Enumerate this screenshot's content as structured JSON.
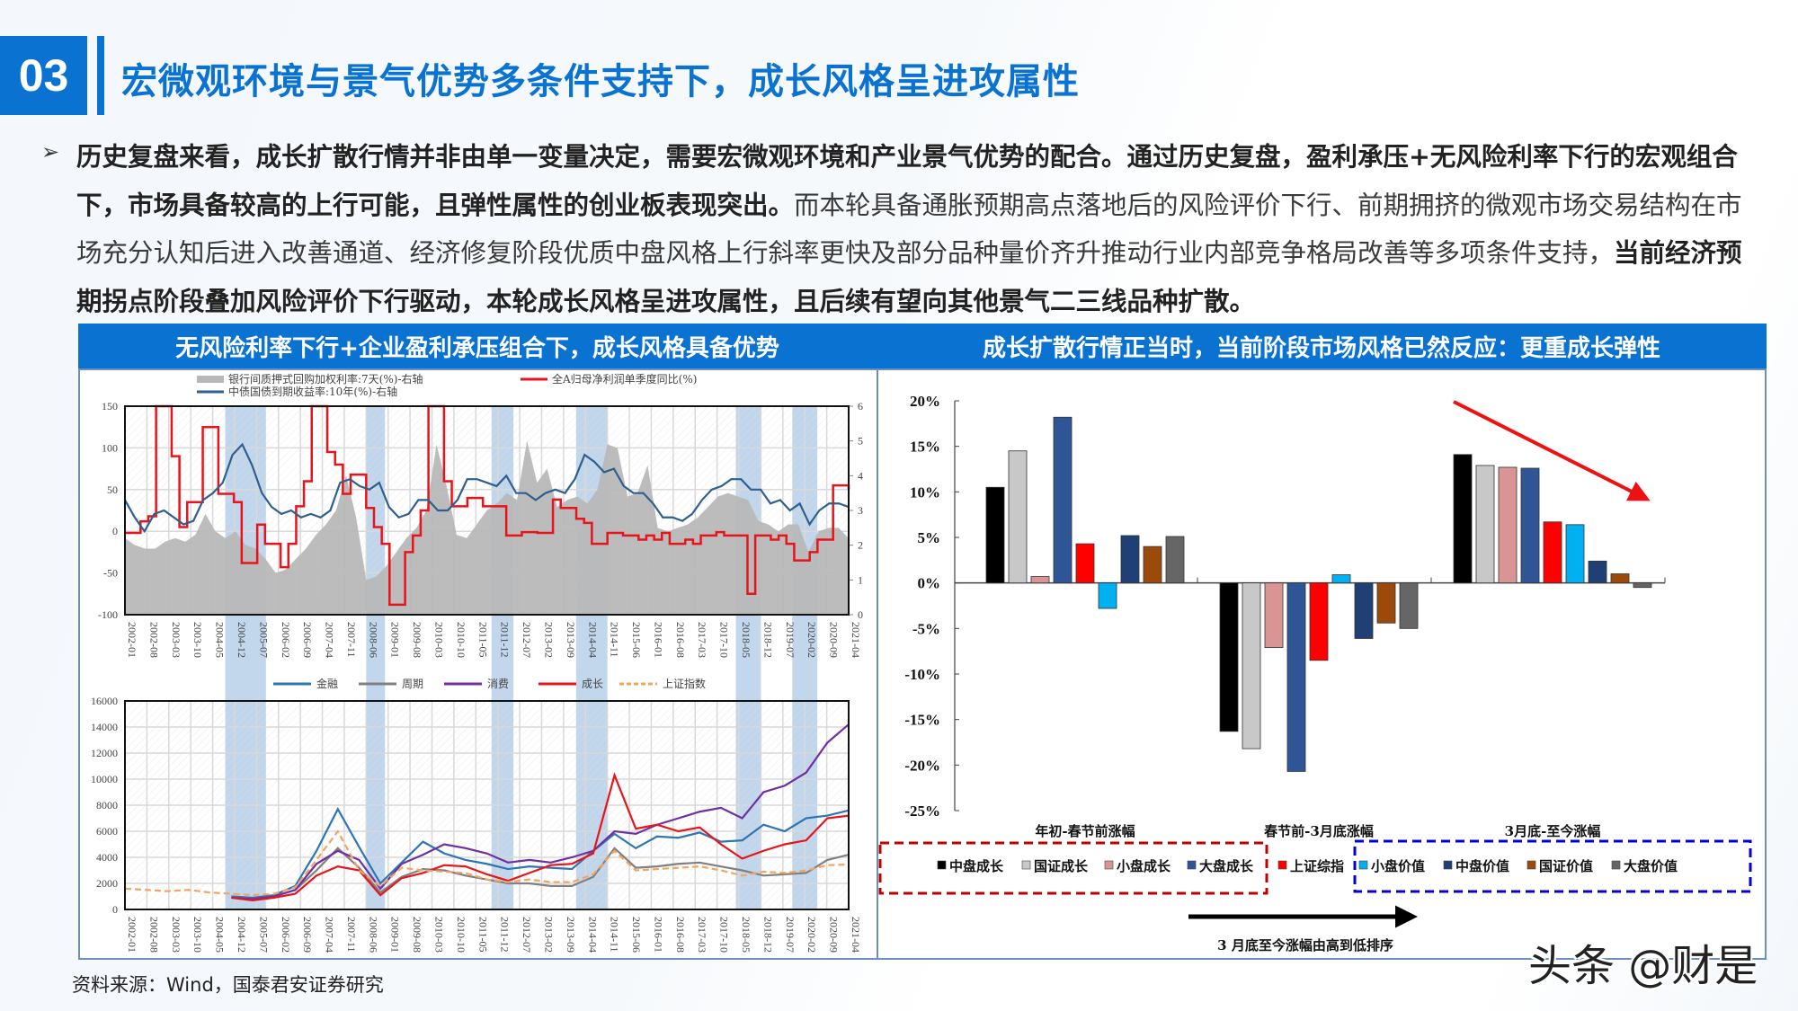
{
  "header": {
    "section_number": "03",
    "title": "宏微观环境与景气优势多条件支持下，成长风格呈进攻属性"
  },
  "bullet": {
    "marker": "➢",
    "segments": [
      {
        "bold": true,
        "text": "历史复盘来看，成长扩散行情并非由单一变量决定，需要宏微观环境和产业景气优势的配合。通过历史复盘，盈利承压+无风险利率下行的宏观组合下，市场具备较高的上行可能，且弹性属性的创业板表现突出。"
      },
      {
        "bold": false,
        "text": "而本轮具备通胀预期高点落地后的风险评价下行、前期拥挤的微观市场交易结构在市场充分认知后进入改善通道、经济修复阶段优质中盘风格上行斜率更快及部分品种量价齐升推动行业内部竞争格局改善等多项条件支持，"
      },
      {
        "bold": true,
        "text": "当前经济预期拐点阶段叠加风险评价下行驱动，本轮成长风格呈进攻属性，且后续有望向其他景气二三线品种扩散。"
      }
    ]
  },
  "left_panel": {
    "title": "无风险利率下行+企业盈利承压组合下，成长风格具备优势"
  },
  "right_panel": {
    "title": "成长扩散行情正当时，当前阶段市场风格已然反应：更重成长弹性",
    "box_note": "3 月底至今涨幅由高到低排序"
  },
  "source": "资料来源：Wind，国泰君安证券研究",
  "watermark": "头条 @财是",
  "colors": {
    "brand_blue": "#0a72d0",
    "shade_band": "#a9c8e6"
  },
  "chart_data": [
    {
      "type": "line",
      "title": "",
      "legend": [
        "银行间质押式回购加权利率:7天(%)-右轴",
        "全A归母净利润单季度同比(%)",
        "中债国债到期收益率:10年(%)-右轴"
      ],
      "left_axis": {
        "ticks": [
          "150",
          "100",
          "50",
          "0",
          "-50",
          "-100"
        ],
        "ylim": [
          -100,
          150
        ]
      },
      "right_axis": {
        "ticks": [
          "6",
          "5",
          "4",
          "3",
          "2",
          "1",
          "0"
        ],
        "ylim": [
          0,
          6
        ]
      },
      "x_ticks": [
        "2002-01",
        "2002-08",
        "2003-03",
        "2003-10",
        "2004-05",
        "2004-12",
        "2005-07",
        "2006-02",
        "2006-09",
        "2007-04",
        "2007-11",
        "2008-06",
        "2009-01",
        "2009-08",
        "2010-03",
        "2010-10",
        "2011-05",
        "2011-12",
        "2012-07",
        "2013-02",
        "2013-09",
        "2014-04",
        "2014-11",
        "2015-06",
        "2016-01",
        "2016-08",
        "2017-03",
        "2017-10",
        "2018-05",
        "2018-12",
        "2019-07",
        "2020-02",
        "2020-09",
        "2021-04"
      ],
      "shaded_periods": [
        [
          "2004-09",
          "2005-10"
        ],
        [
          "2008-06",
          "2008-12"
        ],
        [
          "2011-10",
          "2012-05"
        ],
        [
          "2014-01",
          "2014-11"
        ],
        [
          "2018-04",
          "2018-12"
        ],
        [
          "2019-10",
          "2020-06"
        ]
      ],
      "series": [
        {
          "name": "银行间质押式回购加权利率:7天(%)-右轴",
          "axis": "right",
          "style": "area",
          "color": "#b8b8b8",
          "values": [
            2.2,
            2.0,
            1.9,
            1.9,
            2.1,
            2.2,
            2.1,
            2.3,
            2.9,
            2.4,
            2.2,
            2.4,
            2.0,
            1.9,
            1.6,
            1.2,
            1.3,
            1.6,
            1.9,
            2.3,
            2.6,
            3.0,
            4.0,
            2.8,
            1.0,
            1.1,
            1.4,
            1.8,
            2.2,
            2.5,
            3.0,
            4.9,
            3.7,
            2.3,
            2.2,
            2.6,
            3.0,
            3.2,
            3.5,
            3.3,
            5.0,
            3.8,
            4.2,
            3.1,
            3.3,
            3.4,
            3.2,
            3.6,
            4.9,
            4.8,
            3.4,
            3.5,
            4.3,
            2.5,
            2.4,
            2.5,
            2.6,
            2.8,
            3.1,
            3.4,
            3.5,
            3.4,
            3.3,
            2.7,
            2.6,
            2.4,
            2.6,
            2.6,
            1.8,
            2.4,
            2.5,
            2.5,
            2.2
          ]
        },
        {
          "name": "全A归母净利润单季度同比(%)",
          "axis": "left",
          "style": "step",
          "color": "#e8141b",
          "values": [
            -2,
            -2,
            12,
            18,
            150,
            150,
            90,
            5,
            35,
            35,
            125,
            125,
            45,
            45,
            35,
            -38,
            -38,
            8,
            -15,
            -15,
            -43,
            -15,
            30,
            60,
            150,
            150,
            95,
            80,
            45,
            68,
            68,
            28,
            5,
            -15,
            -88,
            -88,
            -25,
            -5,
            25,
            150,
            150,
            60,
            30,
            30,
            40,
            40,
            30,
            30,
            30,
            -5,
            -5,
            -1,
            -1,
            -2,
            -2,
            38,
            28,
            28,
            15,
            10,
            -15,
            -15,
            -2,
            -2,
            -5,
            -5,
            -10,
            -5,
            -10,
            -2,
            -15,
            -15,
            -10,
            -15,
            -5,
            -5,
            -1,
            -5,
            -5,
            -5,
            -75,
            -5,
            -5,
            -10,
            -5,
            -15,
            -35,
            -35,
            -25,
            -10,
            -10,
            55,
            55,
            50
          ]
        },
        {
          "name": "中债国债到期收益率:10年(%)-右轴",
          "axis": "right",
          "style": "line",
          "color": "#2e5f8e",
          "values": [
            3.3,
            2.8,
            2.4,
            2.9,
            3.0,
            2.8,
            2.6,
            2.7,
            3.3,
            3.5,
            3.8,
            4.6,
            4.9,
            4.3,
            3.5,
            3.1,
            2.9,
            3.0,
            2.8,
            2.9,
            2.8,
            3.0,
            3.8,
            3.9,
            3.7,
            3.6,
            3.8,
            3.1,
            2.8,
            2.9,
            3.3,
            3.3,
            3.0,
            3.0,
            3.3,
            3.9,
            3.9,
            3.8,
            3.7,
            4.0,
            3.5,
            3.5,
            3.3,
            3.5,
            3.6,
            3.5,
            3.9,
            4.6,
            4.4,
            4.1,
            4.2,
            3.7,
            3.5,
            3.5,
            3.2,
            2.8,
            2.8,
            2.7,
            2.9,
            3.3,
            3.6,
            3.7,
            3.9,
            3.9,
            3.6,
            3.6,
            3.2,
            3.3,
            3.0,
            3.2,
            2.6,
            3.0,
            3.2,
            3.2,
            3.1
          ]
        }
      ]
    },
    {
      "type": "line",
      "title": "",
      "legend": [
        "金融",
        "周期",
        "消费",
        "成长",
        "上证指数"
      ],
      "y_ticks": [
        "16000",
        "14000",
        "12000",
        "10000",
        "8000",
        "6000",
        "4000",
        "2000",
        "0"
      ],
      "ylim": [
        0,
        16000
      ],
      "x_ticks": [
        "2002-01",
        "2002-08",
        "2003-03",
        "2003-10",
        "2004-05",
        "2004-12",
        "2005-07",
        "2006-02",
        "2006-09",
        "2007-04",
        "2007-11",
        "2008-06",
        "2009-01",
        "2009-08",
        "2010-03",
        "2010-10",
        "2011-05",
        "2011-12",
        "2012-07",
        "2013-02",
        "2013-09",
        "2014-04",
        "2014-11",
        "2015-06",
        "2016-01",
        "2016-08",
        "2017-03",
        "2017-10",
        "2018-05",
        "2018-12",
        "2019-07",
        "2020-02",
        "2020-09",
        "2021-04"
      ],
      "series": [
        {
          "name": "金融",
          "color": "#2e75b6",
          "values": [
            null,
            null,
            null,
            null,
            null,
            1000,
            900,
            1100,
            1800,
            4500,
            7700,
            4800,
            2000,
            3600,
            5200,
            4300,
            3800,
            3500,
            3100,
            3300,
            3200,
            3100,
            4500,
            5800,
            4700,
            5600,
            5500,
            5900,
            5200,
            5300,
            6500,
            6000,
            7000,
            7200,
            7600
          ]
        },
        {
          "name": "周期",
          "color": "#808080",
          "values": [
            null,
            null,
            null,
            null,
            null,
            900,
            800,
            1000,
            1500,
            3000,
            4700,
            3200,
            1300,
            2500,
            3100,
            3000,
            2600,
            2300,
            2000,
            2000,
            1800,
            1800,
            2500,
            4700,
            3200,
            3300,
            3500,
            3600,
            3300,
            3000,
            2600,
            2700,
            2800,
            3800,
            4200
          ]
        },
        {
          "name": "消费",
          "color": "#7030a0",
          "values": [
            null,
            null,
            null,
            null,
            null,
            900,
            800,
            1000,
            1500,
            3500,
            4500,
            3800,
            1600,
            3500,
            4200,
            5000,
            4700,
            4300,
            3600,
            3800,
            3600,
            4000,
            4500,
            6000,
            5800,
            6500,
            7000,
            7500,
            7800,
            7000,
            9000,
            9500,
            10500,
            12800,
            14200
          ]
        },
        {
          "name": "成长",
          "color": "#e8141b",
          "values": [
            null,
            null,
            null,
            null,
            null,
            900,
            700,
            900,
            1200,
            2600,
            3300,
            3000,
            1100,
            2400,
            2800,
            3400,
            3300,
            2700,
            2200,
            2800,
            3400,
            3500,
            4300,
            10300,
            6200,
            6500,
            6000,
            6300,
            5000,
            3900,
            4500,
            5000,
            5300,
            7000,
            7200
          ]
        },
        {
          "name": "上证指数",
          "color": "#f4a460",
          "style": "dashed",
          "values": [
            1600,
            1500,
            1400,
            1500,
            1300,
            1200,
            1100,
            1200,
            1700,
            3800,
            6000,
            3000,
            1800,
            3200,
            3000,
            2900,
            2800,
            2300,
            2100,
            2300,
            2100,
            2100,
            2700,
            4500,
            3000,
            3100,
            3200,
            3300,
            3000,
            2600,
            2900,
            2800,
            3000,
            3400,
            3450
          ]
        }
      ]
    },
    {
      "type": "bar",
      "title": "",
      "ylabel": "",
      "y_ticks": [
        "20%",
        "15%",
        "10%",
        "5%",
        "0%",
        "-5%",
        "-10%",
        "-15%",
        "-20%",
        "-25%"
      ],
      "ylim": [
        -25,
        20
      ],
      "categories": [
        "年初-春节前涨幅",
        "春节前-3月底涨幅",
        "3月底-至今涨幅"
      ],
      "series": [
        {
          "name": "中盘成长",
          "color": "#000000",
          "values": [
            10.5,
            -16.3,
            14.1
          ]
        },
        {
          "name": "国证成长",
          "color": "#c8c8c8",
          "values": [
            14.5,
            -18.2,
            12.9
          ]
        },
        {
          "name": "小盘成长",
          "color": "#d99594",
          "values": [
            0.7,
            -7.1,
            12.7
          ]
        },
        {
          "name": "大盘成长",
          "color": "#2f5597",
          "values": [
            18.2,
            -20.7,
            12.6
          ]
        },
        {
          "name": "上证综指",
          "color": "#ff0000",
          "values": [
            4.3,
            -8.5,
            6.7
          ]
        },
        {
          "name": "小盘价值",
          "color": "#00b0f0",
          "values": [
            -2.8,
            0.9,
            6.4
          ]
        },
        {
          "name": "中盘价值",
          "color": "#203f75",
          "values": [
            5.2,
            -6.1,
            2.4
          ]
        },
        {
          "name": "国证价值",
          "color": "#9c4a0c",
          "values": [
            4.0,
            -4.4,
            1.0
          ]
        },
        {
          "name": "大盘价值",
          "color": "#666666",
          "values": [
            5.1,
            -5.0,
            -0.5
          ]
        }
      ],
      "legend_position": "bottom",
      "legend_groups": [
        {
          "border": "red-dashed",
          "items": [
            "中盘成长",
            "国证成长",
            "小盘成长",
            "大盘成长"
          ]
        },
        {
          "border": "none",
          "items": [
            "上证综指"
          ]
        },
        {
          "border": "blue-dashed",
          "items": [
            "小盘价值",
            "中盘价值",
            "国证价值",
            "大盘价值"
          ]
        }
      ],
      "annotations": [
        "red downward arrow over 3月底-至今涨幅 group",
        "3 月底至今涨幅由高到低排序"
      ]
    }
  ]
}
